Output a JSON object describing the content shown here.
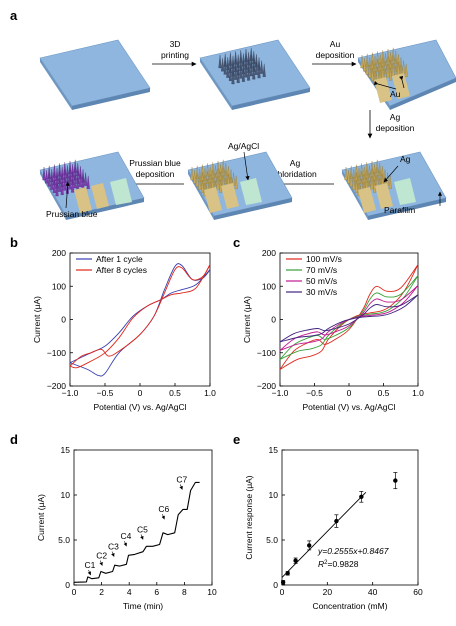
{
  "panel_a": {
    "letter": "a",
    "steps": {
      "printing": [
        "3D",
        "printing"
      ],
      "au_deposition": [
        "Au",
        "deposition"
      ],
      "ag_deposition": [
        "Ag",
        "deposition"
      ],
      "ag_chloridation": [
        "Ag",
        "chloridation"
      ],
      "pb_deposition": [
        "Prussian blue",
        "deposition"
      ]
    },
    "labels": {
      "au": "Au",
      "ag": "Ag",
      "agagcl": "Ag/AgCl",
      "parafilm": "Parafilm",
      "prussian_blue": "Prussian blue"
    }
  },
  "colors": {
    "substrate_top": "#8fb6de",
    "substrate_side": "#5d86b3",
    "gold": "#d8c286",
    "ag": "#bfe6d0",
    "red": "#e0261c",
    "blue": "#3a3fb0",
    "green": "#37a037",
    "magenta": "#c2188f",
    "purple": "#41237e"
  },
  "chart_data": [
    {
      "panel": "b",
      "type": "line",
      "xlabel": "Potential (V) vs. Ag/AgCl",
      "ylabel": "Current (μA)",
      "xlim": [
        -1.0,
        1.0
      ],
      "ylim": [
        -200,
        200
      ],
      "xticks": [
        "−1.0",
        "−0.5",
        "0",
        "0.5",
        "1.0"
      ],
      "yticks": [
        "−200",
        "−100",
        "0",
        "100",
        "200"
      ],
      "legend": "top-left",
      "series": [
        {
          "name": "After 1 cycle",
          "color": "#3a3fb0",
          "forward": [
            [
              -1.0,
              -130
            ],
            [
              -0.75,
              -150
            ],
            [
              -0.6,
              -168
            ],
            [
              -0.5,
              -162
            ],
            [
              -0.3,
              -100
            ],
            [
              0,
              -45
            ],
            [
              0.2,
              10
            ],
            [
              0.35,
              90
            ],
            [
              0.5,
              160
            ],
            [
              0.6,
              162
            ],
            [
              0.75,
              120
            ],
            [
              0.9,
              125
            ],
            [
              1.0,
              150
            ]
          ],
          "reverse": [
            [
              1.0,
              150
            ],
            [
              0.8,
              105
            ],
            [
              0.6,
              90
            ],
            [
              0.45,
              80
            ],
            [
              0.3,
              60
            ],
            [
              0.1,
              40
            ],
            [
              -0.1,
              10
            ],
            [
              -0.3,
              -40
            ],
            [
              -0.5,
              -80
            ],
            [
              -0.7,
              -100
            ],
            [
              -0.9,
              -120
            ],
            [
              -1.0,
              -130
            ]
          ]
        },
        {
          "name": "After 8 cycles",
          "color": "#e0261c",
          "forward": [
            [
              -1.0,
              -140
            ],
            [
              -0.85,
              -112
            ],
            [
              -0.7,
              -100
            ],
            [
              -0.55,
              -90
            ],
            [
              -0.45,
              -110
            ],
            [
              -0.3,
              -95
            ],
            [
              0,
              -45
            ],
            [
              0.2,
              10
            ],
            [
              0.35,
              80
            ],
            [
              0.5,
              150
            ],
            [
              0.6,
              155
            ],
            [
              0.75,
              120
            ],
            [
              0.9,
              130
            ],
            [
              1.0,
              165
            ]
          ],
          "reverse": [
            [
              1.0,
              165
            ],
            [
              0.8,
              95
            ],
            [
              0.6,
              80
            ],
            [
              0.45,
              75
            ],
            [
              0.3,
              60
            ],
            [
              0.1,
              40
            ],
            [
              -0.1,
              5
            ],
            [
              -0.3,
              -55
            ],
            [
              -0.5,
              -100
            ],
            [
              -0.7,
              -125
            ],
            [
              -0.9,
              -145
            ],
            [
              -1.0,
              -140
            ]
          ]
        }
      ]
    },
    {
      "panel": "c",
      "type": "line",
      "xlabel": "Potential (V) vs. Ag/AgCl",
      "ylabel": "Current (μA)",
      "xlim": [
        -1.0,
        1.0
      ],
      "ylim": [
        -200,
        200
      ],
      "xticks": [
        "−1.0",
        "−0.5",
        "0",
        "0.5",
        "1.0"
      ],
      "yticks": [
        "−200",
        "−100",
        "0",
        "100",
        "200"
      ],
      "legend": "top-left",
      "series": [
        {
          "name": "100 mV/s",
          "color": "#e0261c",
          "scale": 1.0
        },
        {
          "name": "70 mV/s",
          "color": "#37a037",
          "scale": 0.8
        },
        {
          "name": "50 mV/s",
          "color": "#c2188f",
          "scale": 0.62
        },
        {
          "name": "30 mV/s",
          "color": "#41237e",
          "scale": 0.45
        }
      ],
      "base_forward": [
        [
          -1.0,
          -150
        ],
        [
          -0.8,
          -95
        ],
        [
          -0.6,
          -70
        ],
        [
          -0.45,
          -60
        ],
        [
          -0.35,
          -75
        ],
        [
          -0.2,
          -60
        ],
        [
          0,
          -30
        ],
        [
          0.2,
          30
        ],
        [
          0.3,
          75
        ],
        [
          0.4,
          100
        ],
        [
          0.55,
          85
        ],
        [
          0.75,
          95
        ],
        [
          1.0,
          165
        ]
      ],
      "base_reverse": [
        [
          1.0,
          165
        ],
        [
          0.8,
          85
        ],
        [
          0.6,
          40
        ],
        [
          0.45,
          25
        ],
        [
          0.3,
          20
        ],
        [
          0.1,
          10
        ],
        [
          -0.1,
          -15
        ],
        [
          -0.3,
          -60
        ],
        [
          -0.4,
          -95
        ],
        [
          -0.55,
          -110
        ],
        [
          -0.75,
          -120
        ],
        [
          -1.0,
          -150
        ]
      ]
    },
    {
      "panel": "d",
      "type": "line",
      "xlabel": "Time (min)",
      "ylabel": "Current (μA)",
      "xlim": [
        0,
        10
      ],
      "ylim": [
        0,
        15
      ],
      "xticks": [
        "0",
        "2",
        "4",
        "6",
        "8",
        "10"
      ],
      "yticks": [
        "0",
        "5.0",
        "10",
        "15"
      ],
      "annotations": [
        {
          "text": "C1",
          "x": 1.2,
          "y": 1.0
        },
        {
          "text": "C2",
          "x": 2.05,
          "y": 2.05
        },
        {
          "text": "C3",
          "x": 2.9,
          "y": 3.05
        },
        {
          "text": "C4",
          "x": 3.8,
          "y": 4.2
        },
        {
          "text": "C5",
          "x": 5.0,
          "y": 4.95
        },
        {
          "text": "C6",
          "x": 6.55,
          "y": 7.2
        },
        {
          "text": "C7",
          "x": 7.85,
          "y": 10.5
        }
      ],
      "trace": [
        [
          0,
          0.3
        ],
        [
          0.9,
          0.35
        ],
        [
          1.0,
          0.9
        ],
        [
          1.3,
          0.7
        ],
        [
          1.8,
          0.8
        ],
        [
          1.95,
          1.5
        ],
        [
          2.3,
          1.3
        ],
        [
          2.8,
          1.5
        ],
        [
          2.95,
          2.2
        ],
        [
          3.3,
          2.1
        ],
        [
          3.8,
          2.3
        ],
        [
          3.95,
          3.3
        ],
        [
          4.4,
          3.4
        ],
        [
          5.0,
          3.7
        ],
        [
          5.25,
          4.3
        ],
        [
          5.7,
          4.3
        ],
        [
          6.2,
          4.5
        ],
        [
          6.45,
          5.8
        ],
        [
          6.8,
          5.6
        ],
        [
          7.3,
          5.8
        ],
        [
          7.55,
          7.8
        ],
        [
          7.9,
          8.4
        ],
        [
          8.2,
          8.4
        ],
        [
          8.45,
          10.5
        ],
        [
          8.8,
          11.4
        ],
        [
          9.1,
          11.4
        ]
      ]
    },
    {
      "panel": "e",
      "type": "scatter",
      "xlabel": "Concentration (mM)",
      "ylabel": "Current response (μA)",
      "xlim": [
        0,
        60
      ],
      "ylim": [
        0,
        15
      ],
      "xticks": [
        "0",
        "20",
        "40",
        "60"
      ],
      "yticks": [
        "0",
        "5.0",
        "10",
        "15"
      ],
      "points": [
        {
          "x": 0.5,
          "y": 0.3,
          "err": 0.2
        },
        {
          "x": 2.5,
          "y": 1.3,
          "err": 0.2
        },
        {
          "x": 6,
          "y": 2.7,
          "err": 0.3
        },
        {
          "x": 12,
          "y": 4.4,
          "err": 0.5
        },
        {
          "x": 24,
          "y": 7.1,
          "err": 0.7
        },
        {
          "x": 35,
          "y": 9.8,
          "err": 0.6
        },
        {
          "x": 50,
          "y": 11.6,
          "err": 0.9
        }
      ],
      "fit": {
        "slope": 0.2555,
        "intercept": 0.8467,
        "x_range": [
          0,
          37
        ]
      },
      "equation": "y=0.2555x+0.8467",
      "r2_label": "R",
      "r2_value": "=0.9828"
    }
  ]
}
